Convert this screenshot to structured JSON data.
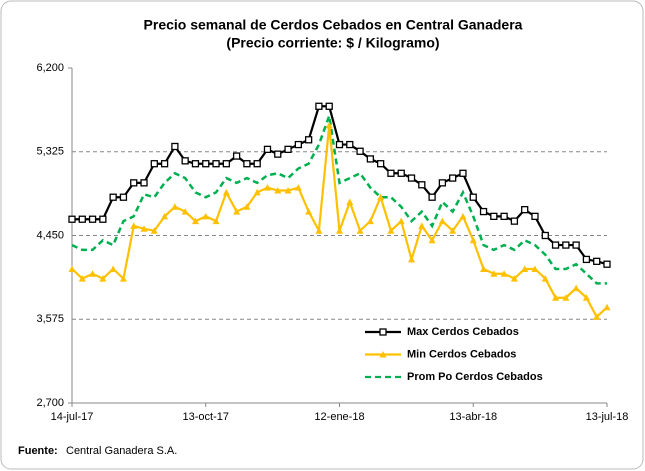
{
  "chart_data": {
    "type": "line",
    "title": "Precio semanal de Cerdos Cebados en Central Ganadera",
    "subtitle": "(Precio corriente: $ / Kilogramo)",
    "categories": [
      "14-jul-17",
      null,
      null,
      null,
      null,
      null,
      null,
      null,
      null,
      null,
      null,
      null,
      null,
      "13-oct-17",
      null,
      null,
      null,
      null,
      null,
      null,
      null,
      null,
      null,
      null,
      null,
      null,
      "12-ene-18",
      null,
      null,
      null,
      null,
      null,
      null,
      null,
      null,
      null,
      null,
      null,
      null,
      "13-abr-18",
      null,
      null,
      null,
      null,
      null,
      null,
      null,
      null,
      null,
      null,
      null,
      null,
      "13-jul-18"
    ],
    "series": [
      {
        "name": "Max Cerdos Cebados",
        "color": "#000000",
        "marker": "square",
        "dash": false,
        "values": [
          4620,
          4620,
          4620,
          4620,
          4850,
          4850,
          5000,
          5000,
          5200,
          5200,
          5380,
          5230,
          5200,
          5200,
          5200,
          5200,
          5280,
          5200,
          5200,
          5350,
          5300,
          5350,
          5400,
          5450,
          5800,
          5800,
          5400,
          5400,
          5330,
          5250,
          5200,
          5100,
          5100,
          5050,
          4980,
          4850,
          5000,
          5050,
          5100,
          4850,
          4700,
          4650,
          4650,
          4600,
          4720,
          4650,
          4450,
          4350,
          4350,
          4350,
          4200,
          4180,
          4150
        ]
      },
      {
        "name": "Min Cerdos Cebados",
        "color": "#ffc000",
        "marker": "triangle",
        "dash": false,
        "values": [
          4100,
          4000,
          4050,
          4000,
          4100,
          4000,
          4550,
          4520,
          4500,
          4650,
          4750,
          4700,
          4600,
          4650,
          4600,
          4900,
          4700,
          4750,
          4900,
          4950,
          4920,
          4920,
          4950,
          4700,
          4500,
          5600,
          4500,
          4800,
          4500,
          4600,
          4850,
          4500,
          4600,
          4200,
          4550,
          4400,
          4600,
          4500,
          4650,
          4400,
          4100,
          4050,
          4050,
          4000,
          4100,
          4100,
          4000,
          3800,
          3800,
          3900,
          3800,
          3600,
          3700
        ]
      },
      {
        "name": "Prom Po Cerdos Cebados",
        "color": "#00b050",
        "marker": "none",
        "dash": true,
        "values": [
          4350,
          4300,
          4300,
          4400,
          4350,
          4600,
          4650,
          4880,
          4850,
          5000,
          5100,
          5050,
          4900,
          4850,
          4900,
          5050,
          5000,
          5050,
          5000,
          5080,
          5100,
          5050,
          5150,
          5200,
          5400,
          5700,
          5000,
          5050,
          5100,
          4950,
          4850,
          4850,
          4750,
          4600,
          4700,
          4550,
          4800,
          4700,
          4900,
          4650,
          4350,
          4300,
          4350,
          4300,
          4400,
          4350,
          4250,
          4100,
          4100,
          4150,
          4050,
          3950,
          3950
        ]
      }
    ],
    "ylim": [
      2700,
      6200
    ],
    "yticks": [
      {
        "value": 2700,
        "label": "2,700"
      },
      {
        "value": 3575,
        "label": "3,575"
      },
      {
        "value": 4450,
        "label": "4,450"
      },
      {
        "value": 5325,
        "label": "5,325"
      },
      {
        "value": 6200,
        "label": "6,200"
      }
    ],
    "grid": true,
    "legend": "lower right",
    "source_label": "Fuente:",
    "source": "Central Ganadera S.A."
  }
}
